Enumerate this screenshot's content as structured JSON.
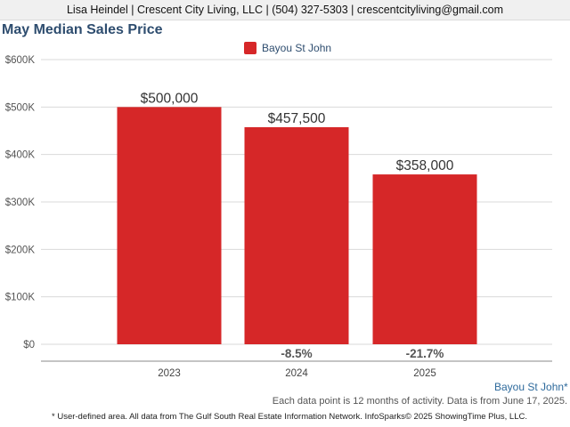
{
  "header": {
    "contact_line": "Lisa Heindel | Crescent City Living, LLC | (504) 327-5303 | crescentcityliving@gmail.com"
  },
  "chart_data": {
    "type": "bar",
    "title": "May Median Sales Price",
    "categories": [
      "2023",
      "2024",
      "2025"
    ],
    "series": [
      {
        "name": "Bayou St John",
        "values": [
          500000,
          457500,
          358000
        ],
        "value_labels": [
          "$500,000",
          "$457,500",
          "$358,000"
        ],
        "color": "#d62728"
      }
    ],
    "change_labels": [
      "",
      "-8.5%",
      "-21.7%"
    ],
    "ylim": [
      0,
      600000
    ],
    "yticks": [
      0,
      100000,
      200000,
      300000,
      400000,
      500000,
      600000
    ],
    "ytick_labels": [
      "$0",
      "$100K",
      "$200K",
      "$300K",
      "$400K",
      "$500K",
      "$600K"
    ],
    "grid": true,
    "legend_position": "top-center"
  },
  "footer": {
    "area_label": "Bayou St John*",
    "activity_note": "Each data point is 12 months of activity. Data is from June 17, 2025.",
    "source_note": "* User-defined area. All data from The Gulf South Real Estate Information Network. InfoSparks© 2025 ShowingTime Plus, LLC."
  }
}
